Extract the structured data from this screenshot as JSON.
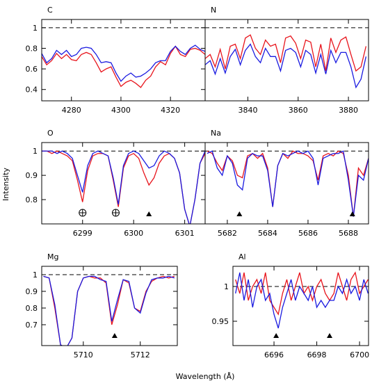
{
  "figure": {
    "xlabel": "Wavelength (Å)",
    "ylabel": "Intensity"
  },
  "chart_data": [
    {
      "type": "line",
      "title": "C",
      "xlim": [
        4268,
        4334
      ],
      "ylim": [
        0.29,
        1.08
      ],
      "xticks": [
        4280,
        4300,
        4320
      ],
      "yticks": [
        0.4,
        0.6,
        0.8,
        1
      ],
      "reference_line": 1,
      "x": [
        4268,
        4270,
        4272,
        4274,
        4276,
        4278,
        4280,
        4282,
        4284,
        4286,
        4288,
        4290,
        4292,
        4294,
        4296,
        4298,
        4300,
        4302,
        4304,
        4306,
        4308,
        4310,
        4312,
        4314,
        4316,
        4318,
        4320,
        4322,
        4324,
        4326,
        4328,
        4330,
        4332,
        4334
      ],
      "series": [
        {
          "color": "#e8141c",
          "values": [
            0.72,
            0.64,
            0.68,
            0.75,
            0.7,
            0.74,
            0.69,
            0.68,
            0.74,
            0.76,
            0.74,
            0.66,
            0.57,
            0.6,
            0.62,
            0.52,
            0.43,
            0.47,
            0.49,
            0.46,
            0.42,
            0.49,
            0.53,
            0.62,
            0.67,
            0.64,
            0.75,
            0.82,
            0.74,
            0.72,
            0.79,
            0.8,
            0.78,
            0.74
          ]
        },
        {
          "color": "#1a1ae0",
          "values": [
            0.75,
            0.66,
            0.7,
            0.78,
            0.74,
            0.78,
            0.72,
            0.74,
            0.8,
            0.81,
            0.8,
            0.74,
            0.66,
            0.67,
            0.66,
            0.56,
            0.48,
            0.53,
            0.56,
            0.52,
            0.53,
            0.56,
            0.6,
            0.66,
            0.68,
            0.68,
            0.77,
            0.82,
            0.77,
            0.74,
            0.8,
            0.83,
            0.79,
            0.77
          ]
        }
      ]
    },
    {
      "type": "line",
      "title": "N",
      "xlim": [
        3823,
        3888
      ],
      "ylim": [
        0.29,
        1.08
      ],
      "xticks": [
        3840,
        3860,
        3880
      ],
      "reference_line": 1,
      "x": [
        3823,
        3825,
        3827,
        3829,
        3831,
        3833,
        3835,
        3837,
        3839,
        3841,
        3843,
        3845,
        3847,
        3849,
        3851,
        3853,
        3855,
        3857,
        3859,
        3861,
        3863,
        3865,
        3867,
        3869,
        3871,
        3873,
        3875,
        3877,
        3879,
        3881,
        3883,
        3885,
        3887
      ],
      "series": [
        {
          "color": "#e8141c",
          "values": [
            0.7,
            0.74,
            0.62,
            0.79,
            0.6,
            0.82,
            0.84,
            0.7,
            0.9,
            0.93,
            0.8,
            0.74,
            0.88,
            0.82,
            0.84,
            0.66,
            0.9,
            0.92,
            0.85,
            0.7,
            0.88,
            0.86,
            0.62,
            0.84,
            0.58,
            0.9,
            0.76,
            0.88,
            0.91,
            0.74,
            0.58,
            0.62,
            0.82
          ]
        },
        {
          "color": "#1a1ae0",
          "values": [
            0.64,
            0.68,
            0.55,
            0.7,
            0.56,
            0.72,
            0.79,
            0.64,
            0.78,
            0.84,
            0.72,
            0.66,
            0.8,
            0.72,
            0.72,
            0.58,
            0.78,
            0.8,
            0.76,
            0.62,
            0.78,
            0.74,
            0.56,
            0.74,
            0.55,
            0.78,
            0.66,
            0.76,
            0.76,
            0.62,
            0.42,
            0.5,
            0.72
          ]
        }
      ]
    },
    {
      "type": "line",
      "title": "O",
      "xlim": [
        6298.2,
        6301.4
      ],
      "ylim": [
        0.7,
        1.035
      ],
      "xticks": [
        6299,
        6300,
        6301
      ],
      "yticks": [
        0.8,
        0.9,
        1
      ],
      "reference_line": 1,
      "oplus_x": [
        6299.0,
        6299.65
      ],
      "triangle_x": [
        6300.3
      ],
      "x": [
        6298.2,
        6298.3,
        6298.4,
        6298.5,
        6298.6,
        6298.7,
        6298.8,
        6298.9,
        6299.0,
        6299.1,
        6299.2,
        6299.3,
        6299.4,
        6299.5,
        6299.6,
        6299.7,
        6299.8,
        6299.9,
        6300.0,
        6300.1,
        6300.2,
        6300.3,
        6300.4,
        6300.5,
        6300.6,
        6300.7,
        6300.8,
        6300.9,
        6301.0,
        6301.1,
        6301.2,
        6301.3,
        6301.4
      ],
      "series": [
        {
          "color": "#e8141c",
          "values": [
            1.0,
            1.0,
            0.99,
            1.0,
            0.99,
            0.98,
            0.96,
            0.88,
            0.79,
            0.92,
            0.98,
            0.99,
            0.99,
            0.98,
            0.88,
            0.77,
            0.93,
            0.98,
            0.99,
            0.97,
            0.91,
            0.86,
            0.89,
            0.95,
            0.98,
            0.99,
            0.97,
            0.91,
            0.76,
            0.69,
            0.8,
            0.95,
            0.99
          ]
        },
        {
          "color": "#1a1ae0",
          "values": [
            1.0,
            1.0,
            1.0,
            0.99,
            1.0,
            0.99,
            0.97,
            0.9,
            0.83,
            0.94,
            0.99,
            1.0,
            0.99,
            0.98,
            0.89,
            0.78,
            0.94,
            0.99,
            1.0,
            0.99,
            0.96,
            0.93,
            0.94,
            0.98,
            1.0,
            0.99,
            0.97,
            0.91,
            0.76,
            0.69,
            0.8,
            0.95,
            1.0
          ]
        }
      ]
    },
    {
      "type": "line",
      "title": "Na",
      "xlim": [
        5680.9,
        5689.0
      ],
      "ylim": [
        0.7,
        1.035
      ],
      "xticks": [
        5682,
        5684,
        5686,
        5688
      ],
      "reference_line": 1,
      "triangle_x": [
        5682.6,
        5688.2
      ],
      "x": [
        5681.0,
        5681.25,
        5681.5,
        5681.75,
        5682.0,
        5682.25,
        5682.5,
        5682.75,
        5683.0,
        5683.25,
        5683.5,
        5683.75,
        5684.0,
        5684.25,
        5684.5,
        5684.75,
        5685.0,
        5685.25,
        5685.5,
        5685.75,
        5686.0,
        5686.25,
        5686.5,
        5686.75,
        5687.0,
        5687.25,
        5687.5,
        5687.75,
        5688.0,
        5688.25,
        5688.5,
        5688.75,
        5689.0
      ],
      "series": [
        {
          "color": "#e8141c",
          "values": [
            1.0,
            0.99,
            0.95,
            0.92,
            0.98,
            0.96,
            0.9,
            0.89,
            0.98,
            0.99,
            0.97,
            0.99,
            0.93,
            0.77,
            0.94,
            0.99,
            0.97,
            1.0,
            0.99,
            0.99,
            0.98,
            0.96,
            0.88,
            0.98,
            0.99,
            0.98,
            1.0,
            0.99,
            0.9,
            0.73,
            0.93,
            0.9,
            0.97
          ]
        },
        {
          "color": "#1a1ae0",
          "values": [
            0.99,
            1.0,
            0.93,
            0.9,
            0.98,
            0.95,
            0.86,
            0.84,
            0.97,
            0.99,
            0.98,
            0.98,
            0.92,
            0.77,
            0.94,
            0.99,
            0.98,
            0.99,
            1.0,
            0.99,
            1.0,
            0.97,
            0.86,
            0.97,
            0.98,
            0.99,
            0.99,
            1.0,
            0.88,
            0.73,
            0.9,
            0.88,
            0.97
          ]
        }
      ]
    },
    {
      "type": "line",
      "title": "Mg",
      "xlim": [
        5708.54,
        5713.3
      ],
      "ylim": [
        0.575,
        1.05
      ],
      "xticks": [
        5710,
        5712
      ],
      "yticks": [
        0.7,
        0.8,
        0.9,
        1
      ],
      "reference_line": 1,
      "triangle_x": [
        5711.1
      ],
      "x": [
        5708.6,
        5708.8,
        5709.0,
        5709.2,
        5709.4,
        5709.6,
        5709.8,
        5710.0,
        5710.2,
        5710.4,
        5710.6,
        5710.8,
        5711.0,
        5711.2,
        5711.4,
        5711.6,
        5711.8,
        5712.0,
        5712.2,
        5712.4,
        5712.6,
        5712.8,
        5713.0,
        5713.2
      ],
      "series": [
        {
          "color": "#e8141c",
          "values": [
            0.99,
            0.98,
            0.8,
            0.58,
            0.56,
            0.62,
            0.9,
            0.98,
            0.99,
            0.98,
            0.98,
            0.95,
            0.7,
            0.82,
            0.97,
            0.95,
            0.8,
            0.78,
            0.9,
            0.96,
            0.98,
            0.99,
            0.98,
            0.99
          ]
        },
        {
          "color": "#1a1ae0",
          "values": [
            0.99,
            0.98,
            0.82,
            0.58,
            0.56,
            0.62,
            0.9,
            0.98,
            0.99,
            0.99,
            0.97,
            0.96,
            0.72,
            0.85,
            0.97,
            0.96,
            0.8,
            0.77,
            0.89,
            0.97,
            0.98,
            0.98,
            0.99,
            0.98
          ]
        }
      ]
    },
    {
      "type": "line",
      "title": "Al",
      "xlim": [
        6694.08,
        6700.42
      ],
      "ylim": [
        0.915,
        1.029
      ],
      "xticks": [
        6696,
        6698,
        6700
      ],
      "yticks": [
        0.95,
        1
      ],
      "reference_line": 1,
      "triangle_x": [
        6696.1,
        6698.6
      ],
      "x": [
        6694.2,
        6694.4,
        6694.6,
        6694.8,
        6695.0,
        6695.2,
        6695.4,
        6695.6,
        6695.8,
        6696.0,
        6696.2,
        6696.4,
        6696.6,
        6696.8,
        6697.0,
        6697.2,
        6697.4,
        6697.6,
        6697.8,
        6698.0,
        6698.2,
        6698.4,
        6698.6,
        6698.8,
        6699.0,
        6699.2,
        6699.4,
        6699.6,
        6699.8,
        6700.0,
        6700.2,
        6700.4
      ],
      "series": [
        {
          "color": "#e8141c",
          "values": [
            1.01,
            0.99,
            1.02,
            0.98,
            1.0,
            1.01,
            0.99,
            1.02,
            0.98,
            0.97,
            0.96,
            0.99,
            1.01,
            0.98,
            1.0,
            1.02,
            0.99,
            1.0,
            0.98,
            1.0,
            1.01,
            0.99,
            0.98,
            0.99,
            1.02,
            1.0,
            0.98,
            1.01,
            1.02,
            0.99,
            1.0,
            1.01
          ]
        },
        {
          "color": "#1a1ae0",
          "values": [
            0.99,
            1.02,
            0.98,
            1.01,
            0.97,
            1.0,
            1.01,
            0.98,
            0.99,
            0.96,
            0.94,
            0.97,
            0.99,
            1.01,
            0.98,
            1.0,
            0.99,
            0.98,
            1.0,
            0.97,
            0.98,
            0.97,
            0.98,
            0.98,
            1.0,
            0.99,
            1.01,
            0.99,
            1.0,
            0.98,
            1.01,
            0.99
          ]
        }
      ]
    }
  ]
}
